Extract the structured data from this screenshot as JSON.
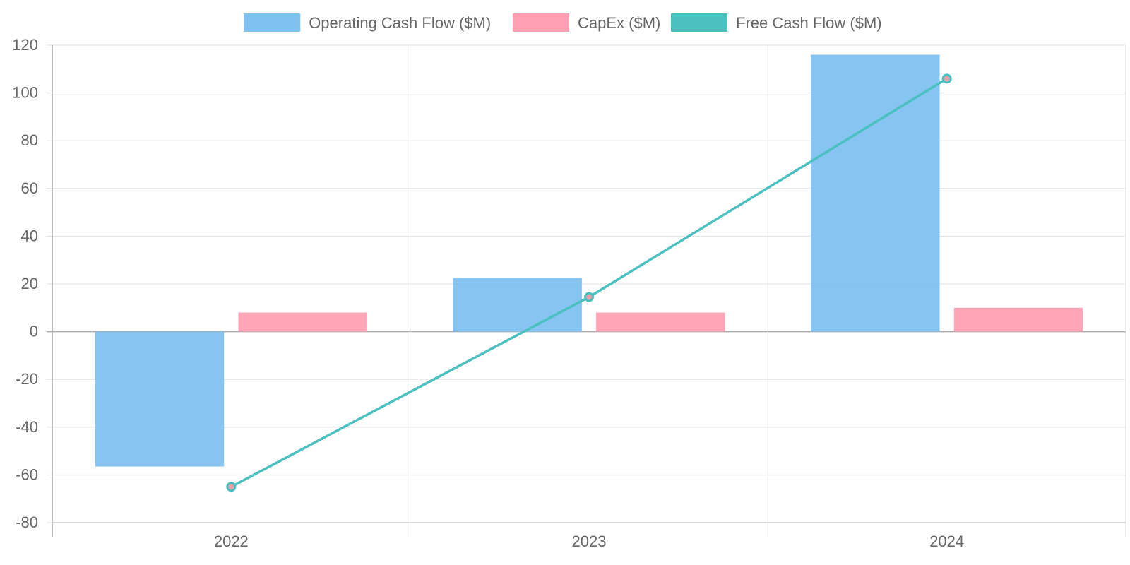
{
  "chart_data": {
    "type": "bar",
    "title": "",
    "xlabel": "",
    "ylabel": "",
    "categories": [
      "2022",
      "2023",
      "2024"
    ],
    "ylim": [
      -80,
      120
    ],
    "yticks": [
      120,
      100,
      80,
      60,
      40,
      20,
      0,
      -20,
      -40,
      -60,
      -80
    ],
    "grid": true,
    "legend_position": "top",
    "series": [
      {
        "name": "Operating Cash Flow ($M)",
        "type": "bar",
        "color": "#7fc1f0",
        "values": [
          -56.5,
          22.5,
          116
        ]
      },
      {
        "name": "CapEx ($M)",
        "type": "bar",
        "color": "#ffa0b4",
        "values": [
          8,
          8,
          10
        ]
      },
      {
        "name": "Free Cash Flow ($M)",
        "type": "line",
        "color": "#4bc0c0",
        "values": [
          -65,
          14.5,
          106
        ]
      }
    ]
  }
}
